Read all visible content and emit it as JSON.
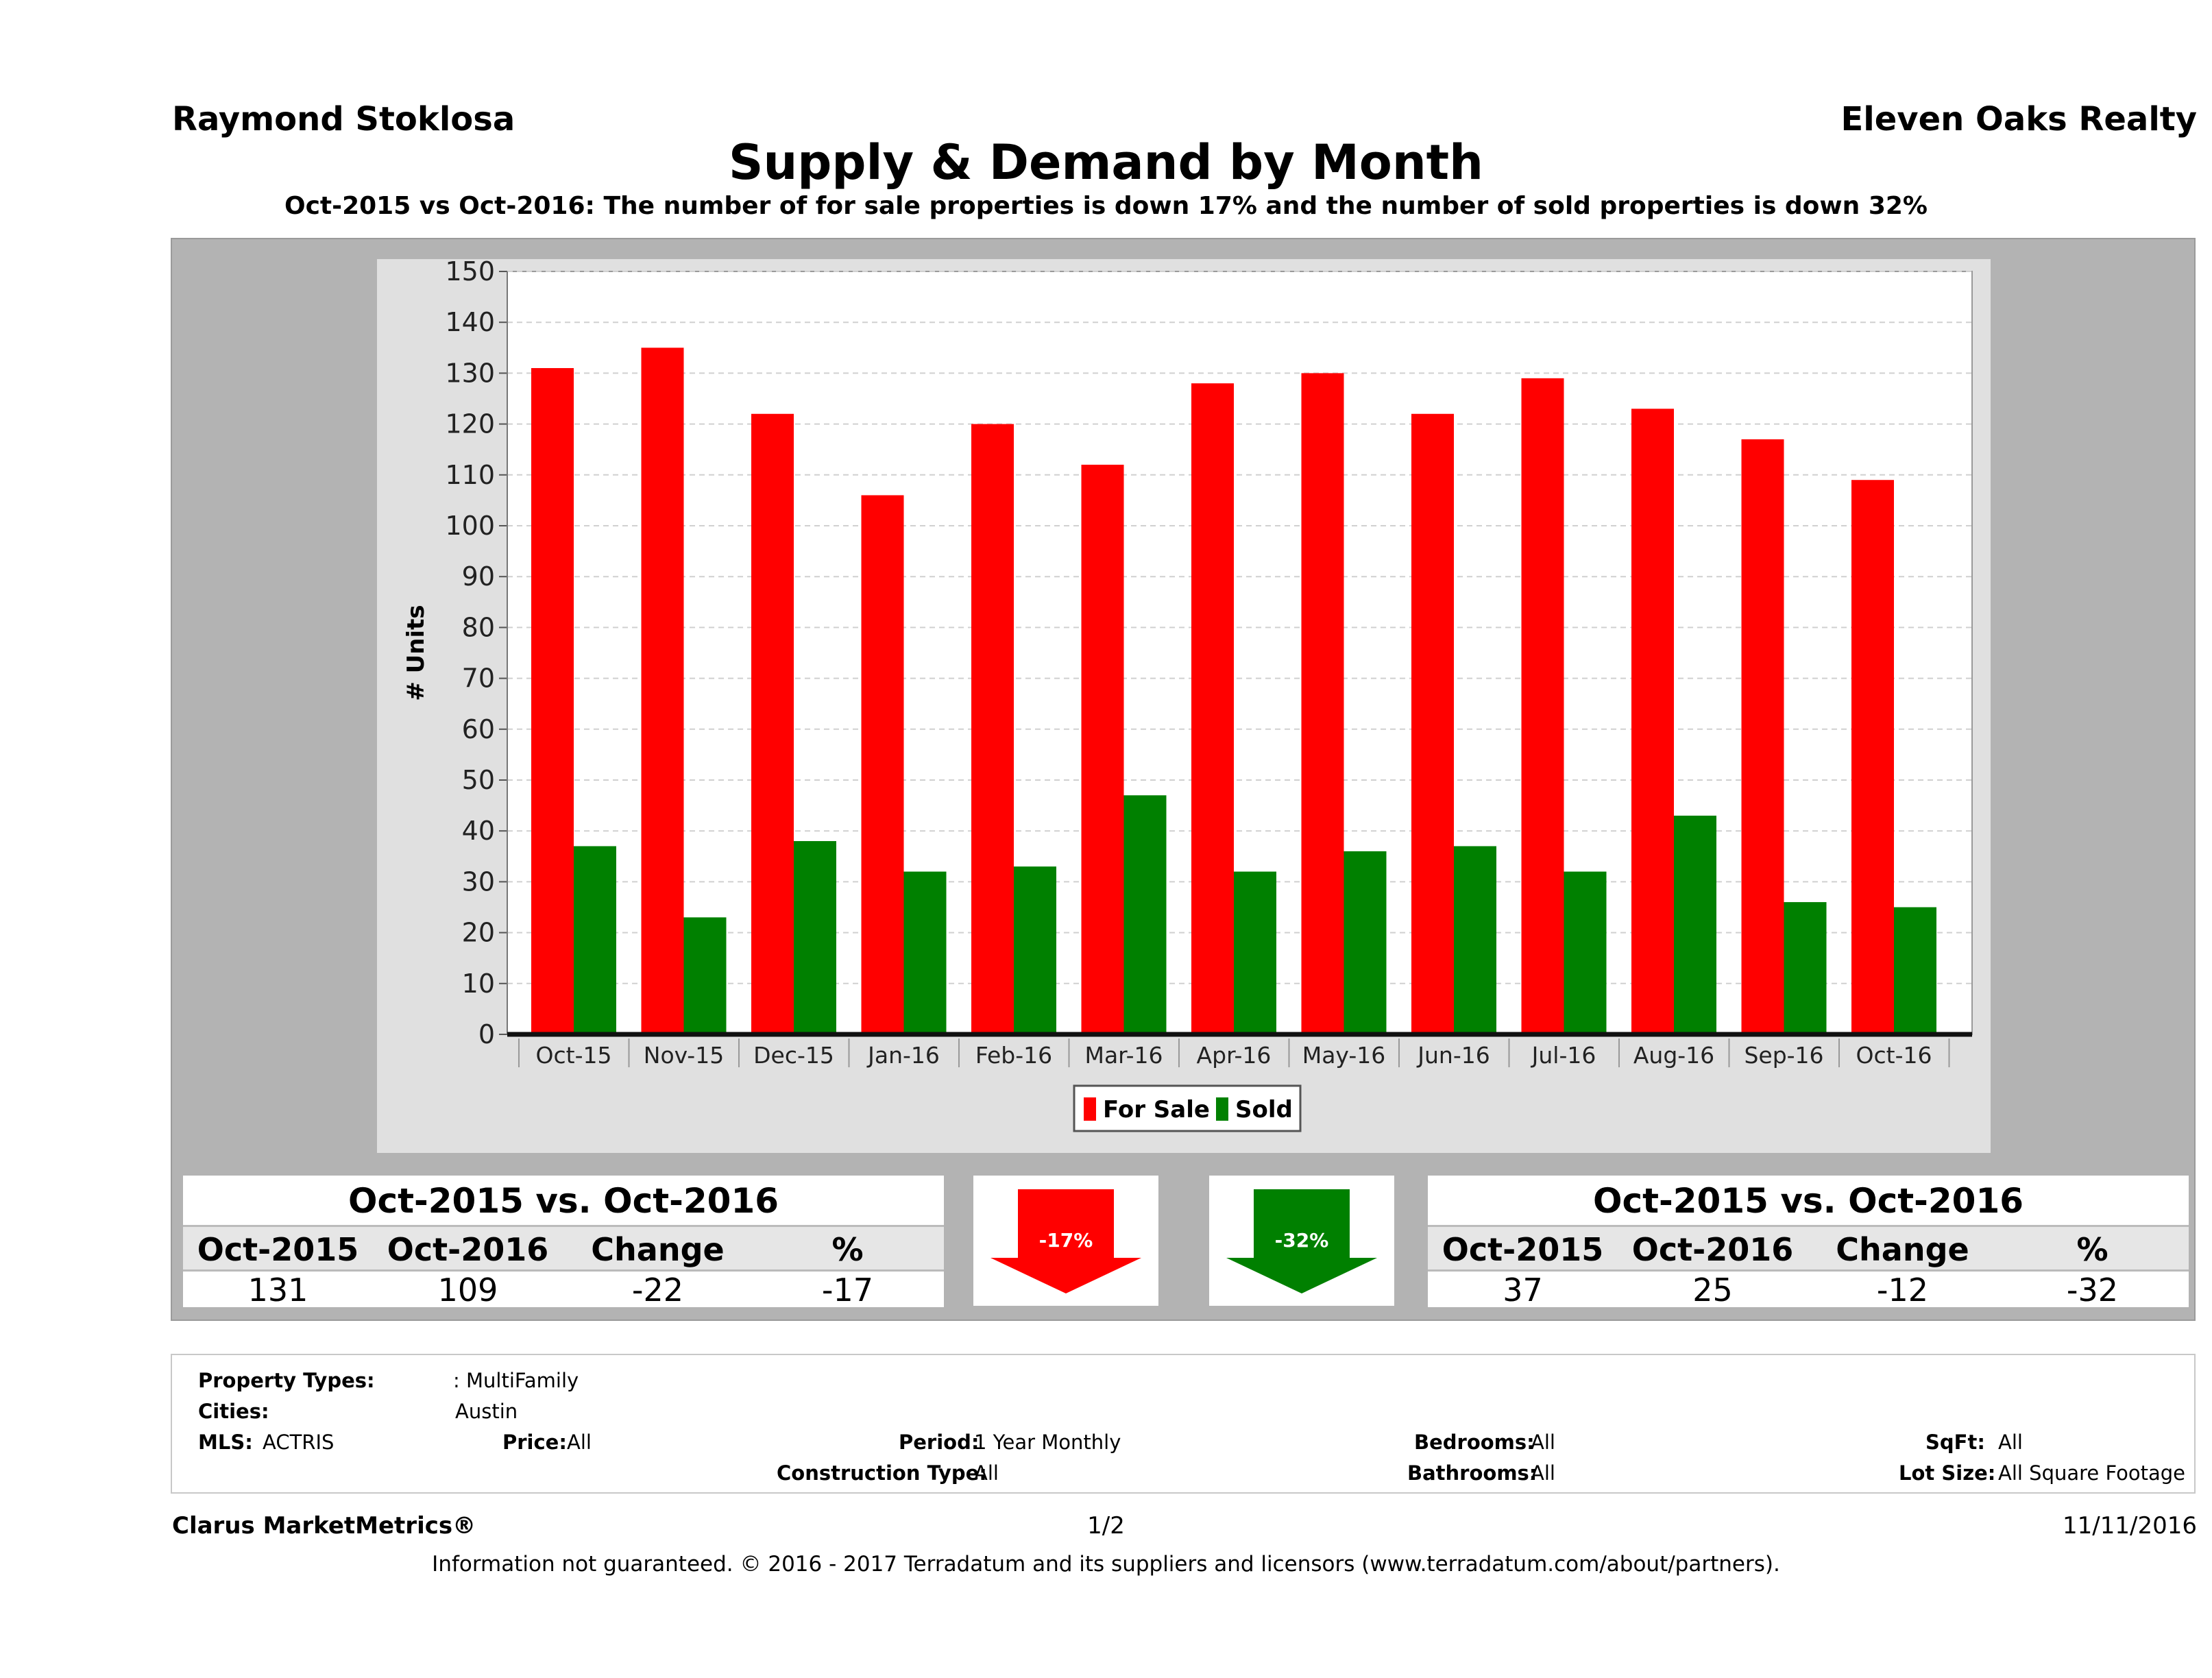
{
  "header": {
    "agent": "Raymond Stoklosa",
    "brokerage": "Eleven Oaks Realty"
  },
  "chart_data": {
    "type": "bar",
    "title": "Supply & Demand by Month",
    "subtitle": "Oct-2015 vs Oct-2016: The number of for sale properties is down 17% and the number of sold properties is down 32%",
    "xlabel": "",
    "ylabel": "# Units",
    "ylim": [
      0,
      150
    ],
    "yticks": [
      0,
      10,
      20,
      30,
      40,
      50,
      60,
      70,
      80,
      90,
      100,
      110,
      120,
      130,
      140,
      150
    ],
    "categories": [
      "Oct-15",
      "Nov-15",
      "Dec-15",
      "Jan-16",
      "Feb-16",
      "Mar-16",
      "Apr-16",
      "May-16",
      "Jun-16",
      "Jul-16",
      "Aug-16",
      "Sep-16",
      "Oct-16"
    ],
    "series": [
      {
        "name": "For Sale",
        "color": "#ff0000",
        "values": [
          131,
          135,
          122,
          106,
          120,
          112,
          128,
          130,
          122,
          129,
          123,
          117,
          109
        ]
      },
      {
        "name": "Sold",
        "color": "#008000",
        "values": [
          37,
          23,
          38,
          32,
          33,
          47,
          32,
          36,
          37,
          32,
          43,
          26,
          25
        ]
      }
    ],
    "grid": true,
    "legend_position": "bottom"
  },
  "comparison_left": {
    "title": "Oct-2015 vs. Oct-2016",
    "headers": [
      "Oct-2015",
      "Oct-2016",
      "Change",
      "%"
    ],
    "values": [
      "131",
      "109",
      "-22",
      "-17"
    ]
  },
  "comparison_right": {
    "title": "Oct-2015 vs. Oct-2016",
    "headers": [
      "Oct-2015",
      "Oct-2016",
      "Change",
      "%"
    ],
    "values": [
      "37",
      "25",
      "-12",
      "-32"
    ]
  },
  "arrows": {
    "for_sale": {
      "label": "-17%",
      "color": "#ff0000",
      "icon": "down-arrow-icon"
    },
    "sold": {
      "label": "-32%",
      "color": "#008000",
      "icon": "down-arrow-icon"
    }
  },
  "criteria": {
    "property_types_label": "Property Types:",
    "property_types_value": ": MultiFamily",
    "cities_label": "Cities:",
    "cities_value": "Austin",
    "mls_label": "MLS:",
    "mls_value": "ACTRIS",
    "price_label": "Price:",
    "price_value": "All",
    "period_label": "Period:",
    "period_value": "1 Year Monthly",
    "construction_label": "Construction Type:",
    "construction_value": "All",
    "bedrooms_label": "Bedrooms:",
    "bedrooms_value": "All",
    "bathrooms_label": "Bathrooms:",
    "bathrooms_value": "All",
    "sqft_label": "SqFt:",
    "sqft_value": "All",
    "lotsize_label": "Lot Size:",
    "lotsize_value": "All Square Footage"
  },
  "footer": {
    "brand": "Clarus MarketMetrics®",
    "page": "1/2",
    "date": "11/11/2016",
    "disclaimer": "Information not guaranteed. © 2016 - 2017 Terradatum and its suppliers and licensors (www.terradatum.com/about/partners)."
  }
}
